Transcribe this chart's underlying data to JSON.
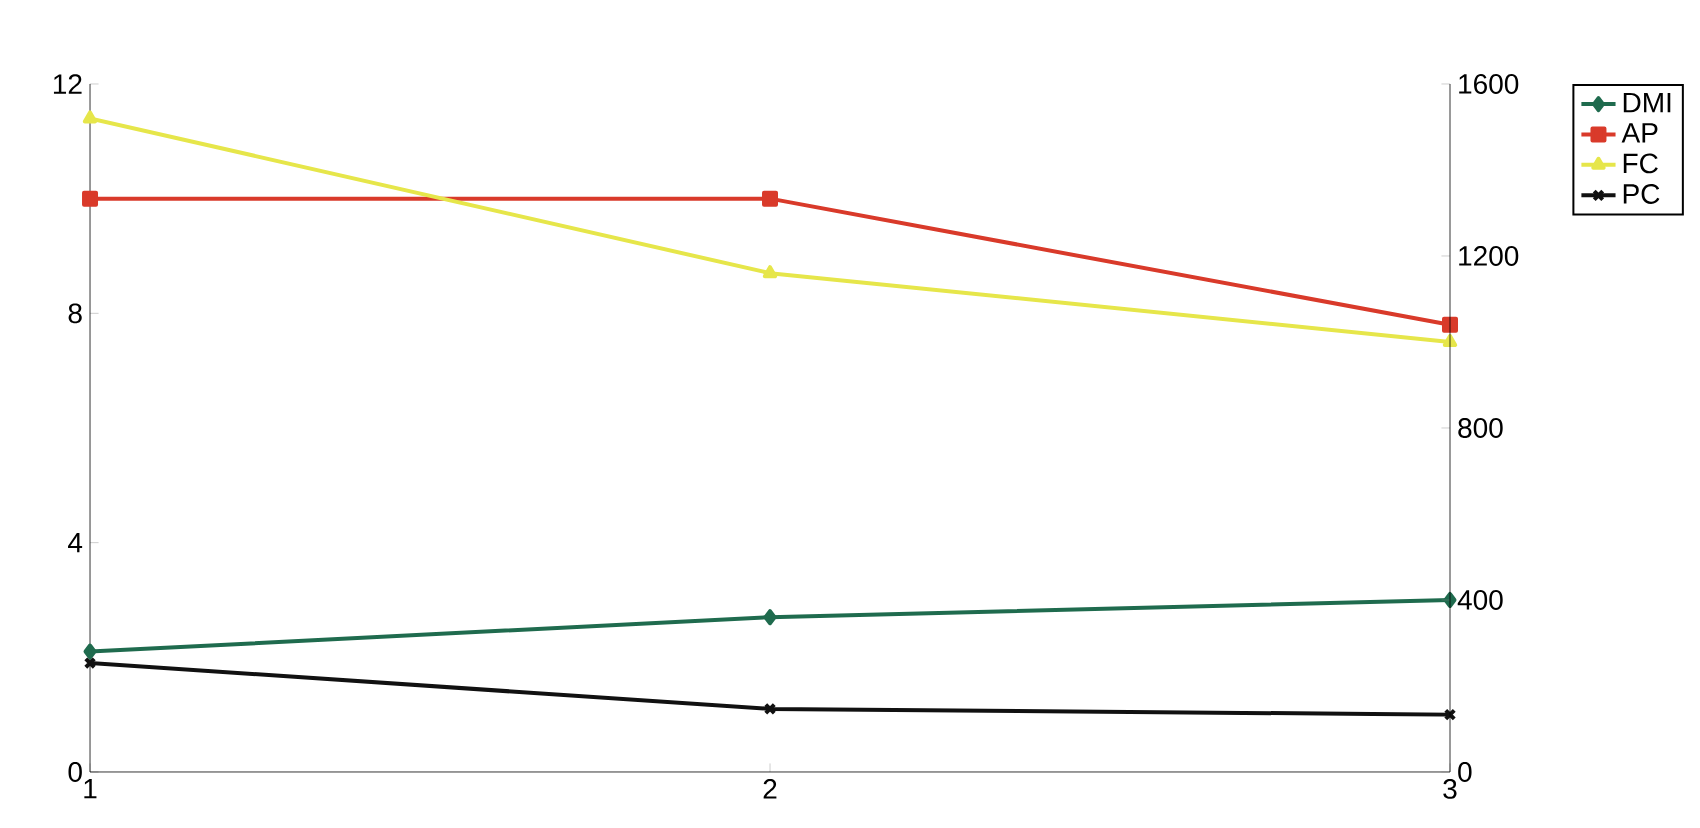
{
  "chart_data": {
    "type": "line",
    "x": [
      1,
      2,
      3
    ],
    "xlim": [
      1,
      3
    ],
    "xticks": [
      1,
      2,
      3
    ],
    "ylim": [
      0,
      12
    ],
    "yticks": [
      0,
      4,
      8,
      12
    ],
    "y2lim": [
      0,
      1600
    ],
    "y2ticks": [
      0,
      400,
      800,
      1200,
      1600
    ],
    "legend": "right",
    "series": [
      {
        "name": "DMI",
        "color": "#1f6b4e",
        "marker": "diamond",
        "values": [
          2.1,
          2.7,
          3.0
        ]
      },
      {
        "name": "AP",
        "color": "#d93a2a",
        "marker": "square",
        "values": [
          10.0,
          10.0,
          7.8
        ]
      },
      {
        "name": "FC",
        "color": "#e6e64a",
        "marker": "triangle",
        "values": [
          11.4,
          8.7,
          7.5
        ]
      },
      {
        "name": "PC",
        "color": "#111111",
        "marker": "cross",
        "values": [
          1.9,
          1.1,
          1.0
        ]
      }
    ]
  }
}
